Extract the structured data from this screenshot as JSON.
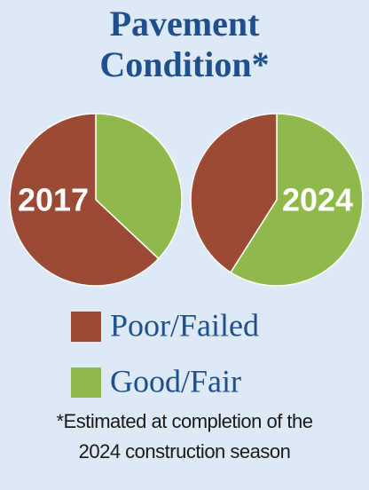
{
  "chart_data": {
    "type": "pie",
    "title": "Pavement Condition*",
    "note": "*Estimated at completion of the 2024 construction season",
    "categories": [
      "Poor/Failed",
      "Good/Fair"
    ],
    "colors": [
      "#9b4a36",
      "#8fb94b"
    ],
    "series": [
      {
        "name": "2017",
        "values": [
          63,
          37
        ]
      },
      {
        "name": "2024",
        "values": [
          41,
          59
        ]
      }
    ]
  }
}
